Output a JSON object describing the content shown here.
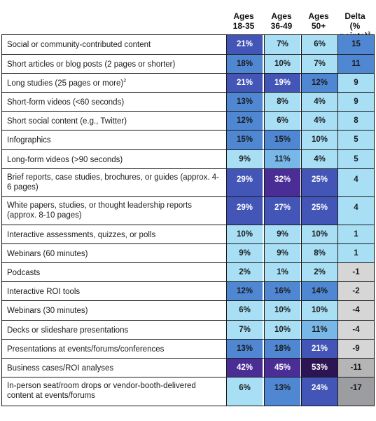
{
  "chart_data": {
    "type": "table",
    "columns": [
      {
        "lines": [
          "Ages",
          "18-35"
        ]
      },
      {
        "lines": [
          "Ages",
          "36-49"
        ]
      },
      {
        "lines": [
          "Ages",
          "50+"
        ]
      },
      {
        "lines": [
          "Delta",
          "(% points)"
        ],
        "sup": "3"
      }
    ],
    "rows": [
      {
        "label": "Social or community-contributed content",
        "values": [
          "21%",
          "7%",
          "6%",
          "15"
        ]
      },
      {
        "label": "Short articles or blog posts (2 pages or shorter)",
        "values": [
          "18%",
          "10%",
          "7%",
          "11"
        ]
      },
      {
        "label": "Long studies (25 pages or more)",
        "sup": "2",
        "values": [
          "21%",
          "19%",
          "12%",
          "9"
        ]
      },
      {
        "label": "Short-form videos (<60 seconds)",
        "values": [
          "13%",
          "8%",
          "4%",
          "9"
        ]
      },
      {
        "label": "Short social content (e.g., Twitter)",
        "values": [
          "12%",
          "6%",
          "4%",
          "8"
        ]
      },
      {
        "label": "Infographics",
        "values": [
          "15%",
          "15%",
          "10%",
          "5"
        ]
      },
      {
        "label": "Long-form videos (>90 seconds)",
        "values": [
          "9%",
          "11%",
          "4%",
          "5"
        ]
      },
      {
        "label": "Brief reports, case studies, brochures, or guides (approx. 4-6 pages)",
        "values": [
          "29%",
          "32%",
          "25%",
          "4"
        ]
      },
      {
        "label": "White papers, studies, or thought leadership reports (approx. 8-10 pages)",
        "values": [
          "29%",
          "27%",
          "25%",
          "4"
        ]
      },
      {
        "label": "Interactive assessments, quizzes, or polls",
        "values": [
          "10%",
          "9%",
          "10%",
          "1"
        ]
      },
      {
        "label": "Webinars (60 minutes)",
        "values": [
          "9%",
          "9%",
          "8%",
          "1"
        ]
      },
      {
        "label": "Podcasts",
        "values": [
          "2%",
          "1%",
          "2%",
          "-1"
        ]
      },
      {
        "label": "Interactive ROI tools",
        "values": [
          "12%",
          "16%",
          "14%",
          "-2"
        ]
      },
      {
        "label": "Webinars (30 minutes)",
        "values": [
          "6%",
          "10%",
          "10%",
          "-4"
        ]
      },
      {
        "label": "Decks or slideshare presentations",
        "values": [
          "7%",
          "10%",
          "11%",
          "-4"
        ]
      },
      {
        "label": "Presentations at events/forums/conferences",
        "values": [
          "13%",
          "18%",
          "21%",
          "-9"
        ]
      },
      {
        "label": "Business cases/ROI analyses",
        "values": [
          "42%",
          "45%",
          "53%",
          "-11"
        ]
      },
      {
        "label": "In-person seat/room drops or vendor-booth-delivered content at events/forums",
        "values": [
          "6%",
          "13%",
          "24%",
          "-17"
        ]
      }
    ],
    "colors": {
      "very_light": "#a8dff5",
      "light": "#78b8e8",
      "medium": "#4f87d3",
      "strong": "#4355b6",
      "dark": "#4a2d95",
      "darkest": "#2d1452",
      "delta_pos_light": "#a8dff5",
      "delta_pos_strong": "#4f87d3",
      "delta_neg_light": "#d6d6d6",
      "delta_neg_medium": "#b5b5b6",
      "delta_neg_dark": "#9c9da0"
    }
  }
}
